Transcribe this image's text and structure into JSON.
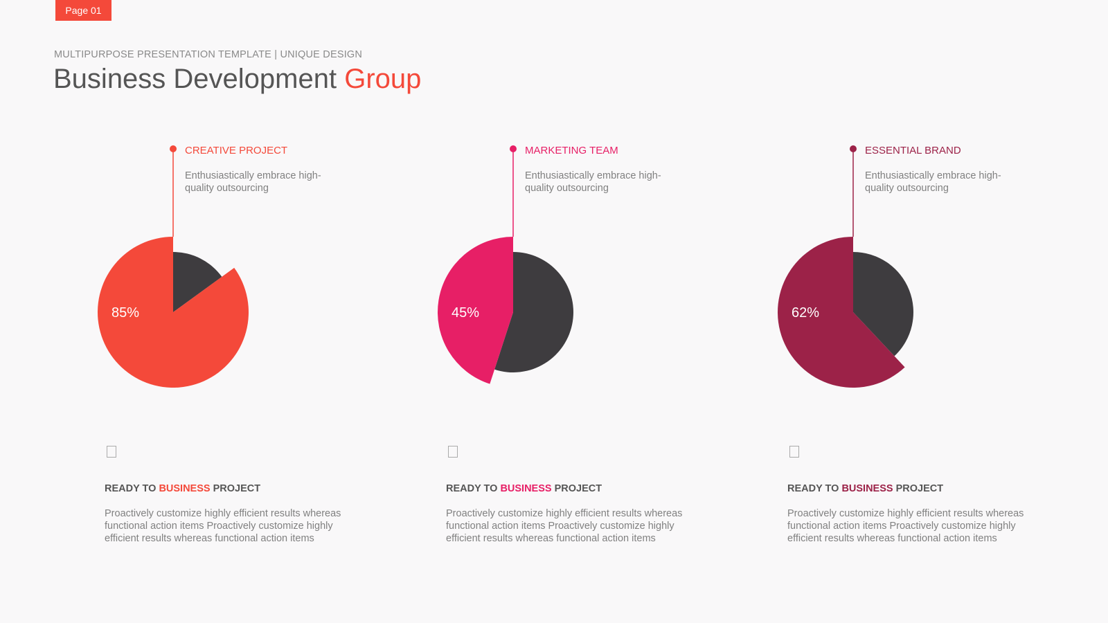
{
  "page_label": "Page 01",
  "header": {
    "subtitle": "MULTIPURPOSE PRESENTATION TEMPLATE | UNIQUE DESIGN",
    "title": "Business Development",
    "title_highlight": "Group"
  },
  "chart_data": [
    {
      "type": "pie",
      "title": "CREATIVE PROJECT",
      "subtitle": "Enthusiastically embrace high-quality outsourcing",
      "values": [
        85,
        15
      ],
      "value_labels": [
        "85%",
        null
      ],
      "colors": [
        "#f4493a",
        "#3e3c3f"
      ]
    },
    {
      "type": "pie",
      "title": "MARKETING TEAM",
      "subtitle": "Enthusiastically embrace high-quality outsourcing",
      "values": [
        45,
        55
      ],
      "value_labels": [
        "45%",
        null
      ],
      "colors": [
        "#e71f66",
        "#3e3c3f"
      ]
    },
    {
      "type": "pie",
      "title": "ESSENTIAL BRAND",
      "subtitle": "Enthusiastically embrace high-quality outsourcing",
      "values": [
        62,
        38
      ],
      "value_labels": [
        "62%",
        null
      ],
      "colors": [
        "#9c2248",
        "#3e3c3f"
      ]
    }
  ],
  "cards": [
    {
      "heading": [
        "READY TO",
        "BUSINESS",
        "PROJECT"
      ],
      "text": "Proactively customize highly efficient results whereas functional action items Proactively customize highly efficient results whereas functional action items"
    },
    {
      "heading": [
        "READY TO",
        "BUSINESS",
        "PROJECT"
      ],
      "text": "Proactively customize highly efficient results whereas functional action items Proactively customize highly efficient results whereas functional action items"
    },
    {
      "heading": [
        "READY TO",
        "BUSINESS",
        "PROJECT"
      ],
      "text": "Proactively customize highly efficient results whereas functional action items Proactively customize highly efficient results whereas functional action items"
    }
  ]
}
